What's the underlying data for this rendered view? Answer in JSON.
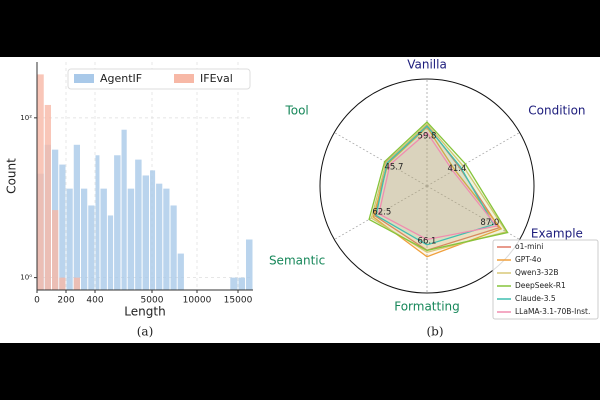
{
  "chart_data": [
    {
      "type": "histogram",
      "caption": "(a)",
      "xlabel": "Length",
      "ylabel": "Count",
      "bins": [
        0,
        50,
        100,
        150,
        200,
        250,
        300,
        350,
        400,
        800,
        1400,
        1900,
        2500,
        3000,
        3600,
        4200,
        4800,
        5400,
        6200,
        7000,
        7800,
        8600,
        9300,
        10000,
        11000,
        12000,
        13000,
        14000,
        15000,
        15500,
        16000
      ],
      "series": [
        {
          "name": "AgentIF",
          "color": "#a9c9e9",
          "values": [
            20,
            46,
            40,
            26,
            13,
            46,
            13,
            8,
            34,
            13,
            6,
            34,
            71,
            13,
            30,
            19,
            22,
            15,
            13,
            8,
            2,
            0,
            0,
            0,
            0,
            0,
            0,
            1,
            1,
            3
          ]
        },
        {
          "name": "IFEval",
          "color": "#f7b8a6",
          "values": [
            350,
            145,
            7,
            1,
            0,
            1,
            0,
            0,
            0,
            0,
            0,
            0,
            0,
            0,
            0,
            0,
            0,
            0,
            0,
            0,
            0,
            0,
            0,
            0,
            0,
            0,
            0,
            0,
            0,
            0
          ]
        }
      ],
      "xlim": [
        0,
        16000
      ],
      "xticks": [
        0,
        200,
        400,
        5000,
        10000,
        15000
      ],
      "ylim": [
        0.7,
        500
      ],
      "yscale": "log",
      "yticks": [
        {
          "value": 1,
          "label": "10⁰"
        },
        {
          "value": 100,
          "label": "10²"
        }
      ],
      "grid": true,
      "legend": "upper right"
    },
    {
      "type": "radar",
      "caption": "(b)",
      "categories": [
        "Vanilla",
        "Condition",
        "Example",
        "Formatting",
        "Semantic",
        "Tool"
      ],
      "category_colors": [
        "#1c1c7c",
        "#1c1c7c",
        "#1c1c7c",
        "#17875a",
        "#17875a",
        "#17875a"
      ],
      "rlim": [
        0,
        100
      ],
      "annotations": [
        "59.8",
        "41.4",
        "87.0",
        "66.1",
        "62.5",
        "45.7"
      ],
      "series": [
        {
          "name": "o1-mini",
          "color": "#e07866",
          "values": [
            57.0,
            35.0,
            78.0,
            60.0,
            56.0,
            44.5
          ]
        },
        {
          "name": "GPT-4o",
          "color": "#f0a03c",
          "values": [
            55.0,
            30.0,
            80.0,
            66.1,
            58.0,
            42.0
          ]
        },
        {
          "name": "Qwen3-32B",
          "color": "#d9c878",
          "values": [
            58.0,
            38.5,
            85.5,
            62.0,
            60.0,
            44.0
          ]
        },
        {
          "name": "DeepSeek-R1",
          "color": "#86c43a",
          "values": [
            59.8,
            41.4,
            87.0,
            60.2,
            62.5,
            45.7
          ]
        },
        {
          "name": "Claude-3.5",
          "color": "#3fbfb0",
          "values": [
            56.0,
            36.0,
            72.0,
            55.0,
            55.0,
            43.0
          ]
        },
        {
          "name": "LLaMA-3.1-70B-Inst.",
          "color": "#f08db0",
          "values": [
            50.0,
            28.0,
            75.0,
            50.0,
            52.0,
            40.0
          ]
        }
      ],
      "legend": "lower right"
    }
  ]
}
